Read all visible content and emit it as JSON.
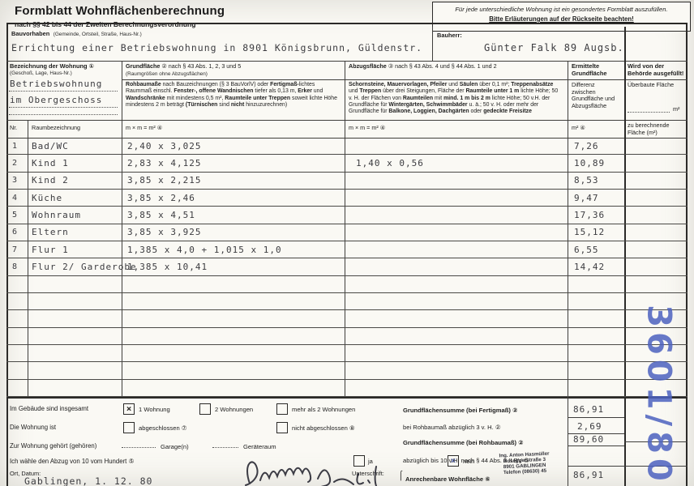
{
  "header": {
    "title": "Formblatt Wohnflächenberechnung",
    "subtitle": "nach §§ 42 bis 44 der Zweiten Berechnungsverordnung",
    "notice_line1": "Für jede unterschiedliche Wohnung ist ein gesondertes Formblatt auszufüllen.",
    "notice_line2": "Bitte Erläuterungen auf der Rückseite beachten!"
  },
  "bauvorhaben": {
    "label": "Bauvorhaben",
    "label_hint": "(Gemeinde, Ortsteil, Straße, Haus-Nr.)",
    "value": "Errichtung einer Betriebswohnung in 8901 Königsbrunn, Güldenstr."
  },
  "bauherr": {
    "label": "Bauherr:",
    "value": "Günter Falk 89 Augsb."
  },
  "wohnung_col": {
    "label": "Bezeichnung der Wohnung ①",
    "hint": "(Geschoß, Lage, Haus-Nr.)",
    "value_line1": "Betriebswohnung",
    "value_line2": "im Obergeschoss"
  },
  "grund_col": {
    "header_runs": [
      {
        "t": "Grundfläche",
        "b": 1
      },
      {
        "t": " ② nach § 43 Abs. 1, 2, 3 und 5",
        "b": 0
      }
    ],
    "hint": "(Raumgrößen ohne Abzugsflächen)",
    "desc_runs": [
      {
        "t": "Rohbaumaße",
        "b": 1
      },
      {
        "t": " nach Bauzeichnungen (§ 3 BauVorlV) oder ",
        "b": 0
      },
      {
        "t": "Fertigmaß-",
        "b": 1
      },
      {
        "t": "lichtes Raummaß einschl. ",
        "b": 0
      },
      {
        "t": "Fenster-, offene Wandnischen",
        "b": 1
      },
      {
        "t": " tiefer als 0,13 m, ",
        "b": 0
      },
      {
        "t": "Erker",
        "b": 1
      },
      {
        "t": " und ",
        "b": 0
      },
      {
        "t": "Wandschränke",
        "b": 1
      },
      {
        "t": " mit mindestens 0,5 m², ",
        "b": 0
      },
      {
        "t": "Raumteile unter Treppen",
        "b": 1
      },
      {
        "t": " soweit lichte Höhe mindestens 2 m beträgt ",
        "b": 0
      },
      {
        "t": "(Türnischen",
        "b": 1
      },
      {
        "t": " sind ",
        "b": 0
      },
      {
        "t": "nicht",
        "b": 1
      },
      {
        "t": " hinzuzurechnen)",
        "b": 0
      }
    ]
  },
  "abzug_col": {
    "header_runs": [
      {
        "t": "Abzugsfläche",
        "b": 1
      },
      {
        "t": " ③ nach § 43 Abs. 4 und § 44 Abs. 1 und 2",
        "b": 0
      }
    ],
    "desc_runs": [
      {
        "t": "Schornsteine, Mauervorlagen, Pfeiler",
        "b": 1
      },
      {
        "t": " und ",
        "b": 0
      },
      {
        "t": "Säulen",
        "b": 1
      },
      {
        "t": " über 0,1 m²; ",
        "b": 0
      },
      {
        "t": "Treppenabsätze",
        "b": 1
      },
      {
        "t": " und ",
        "b": 0
      },
      {
        "t": "Treppen",
        "b": 1
      },
      {
        "t": " über drei Steigungen, Fläche der ",
        "b": 0
      },
      {
        "t": "Raumteile unter 1 m",
        "b": 1
      },
      {
        "t": " lichte Höhe; 50 v. H. der Flächen von ",
        "b": 0
      },
      {
        "t": "Raumteilen",
        "b": 1
      },
      {
        "t": " mit ",
        "b": 0
      },
      {
        "t": "mind. 1 m bis 2 m",
        "b": 1
      },
      {
        "t": " lichte Höhe; 50 v.H. der Grundfläche für ",
        "b": 0
      },
      {
        "t": "Wintergärten, Schwimmbäder",
        "b": 1
      },
      {
        "t": " u. ä.; 50 v. H. oder mehr der Grundfläche für ",
        "b": 0
      },
      {
        "t": "Balkone, Loggien, Dachgärten",
        "b": 1
      },
      {
        "t": " oder ",
        "b": 0
      },
      {
        "t": "gedeckte Freisitze",
        "b": 1
      }
    ]
  },
  "ermittelte_col": {
    "label_line1": "Ermittelte",
    "label_line2": "Grundfläche",
    "desc": "Differenz zwischen Grundfläche und Abzugsfläche"
  },
  "behoerde_col": {
    "label": "Wird von der Behörde ausgefüllt!",
    "ueberbaut": "Überbaute Fläche",
    "m2": "m²",
    "zu_berechnende": "zu berechnende Fläche (m²)"
  },
  "table": {
    "sub_headers": {
      "nr": "Nr.",
      "raum": "Raumbezeichnung",
      "dims_grund": "m × m = m² ④",
      "dims_abzug": "m × m = m² ④",
      "m2": "m² ④"
    },
    "rows": [
      {
        "nr": "1",
        "raum": "Bad/WC",
        "grund": "2,40 x 3,025",
        "abzug": "",
        "flaeche": "7,26"
      },
      {
        "nr": "2",
        "raum": "Kind 1",
        "grund": "2,83 x 4,125",
        "abzug": "1,40 x 0,56",
        "flaeche": "10,89"
      },
      {
        "nr": "3",
        "raum": "Kind 2",
        "grund": "3,85 x 2,215",
        "abzug": "",
        "flaeche": "8,53"
      },
      {
        "nr": "4",
        "raum": "Küche",
        "grund": "3,85 x 2,46",
        "abzug": "",
        "flaeche": "9,47"
      },
      {
        "nr": "5",
        "raum": "Wohnraum",
        "grund": "3,85 x 4,51",
        "abzug": "",
        "flaeche": "17,36"
      },
      {
        "nr": "6",
        "raum": "Eltern",
        "grund": "3,85 x 3,925",
        "abzug": "",
        "flaeche": "15,12"
      },
      {
        "nr": "7",
        "raum": "Flur 1",
        "grund": "1,385 x 4,0  +  1,015 x 1,0",
        "abzug": "",
        "flaeche": "6,55"
      },
      {
        "nr": "8",
        "raum": "Flur 2/ Garderobe",
        "grund": "1,385 x 10,41",
        "abzug": "",
        "flaeche": "14,42"
      },
      {
        "nr": "",
        "raum": "",
        "grund": "",
        "abzug": "",
        "flaeche": ""
      },
      {
        "nr": "",
        "raum": "",
        "grund": "",
        "abzug": "",
        "flaeche": ""
      },
      {
        "nr": "",
        "raum": "",
        "grund": "",
        "abzug": "",
        "flaeche": ""
      },
      {
        "nr": "",
        "raum": "",
        "grund": "",
        "abzug": "",
        "flaeche": ""
      },
      {
        "nr": "",
        "raum": "",
        "grund": "",
        "abzug": "",
        "flaeche": ""
      },
      {
        "nr": "",
        "raum": "",
        "grund": "",
        "abzug": "",
        "flaeche": ""
      },
      {
        "nr": "",
        "raum": "",
        "grund": "",
        "abzug": "",
        "flaeche": ""
      }
    ]
  },
  "bottom": {
    "gebaeude_label": "Im Gebäude sind insgesamt",
    "opt_1wohnung": "1 Wohnung",
    "opt_2wohnungen": "2 Wohnungen",
    "opt_mehr": "mehr als 2 Wohnungen",
    "wohnungist_label": "Die Wohnung ist",
    "opt_abgeschlossen": "abgeschlossen ⑦",
    "opt_nicht_abgeschlossen": "nicht abgeschlossen ⑧",
    "gehoert_label": "Zur Wohnung gehört (gehören)",
    "garage_label": "Garage(n)",
    "geraeteraum_label": "Geräteraum",
    "abzug_label": "Ich wähle den Abzug von 10 vom Hundert ⑤",
    "ja_label": "ja",
    "nein_label": "nein",
    "ort_datum_label": "Ort, Datum:",
    "ort_datum_value": "Gablingen, 1. 12. 80",
    "unterschrift_label": "Unterschrift:"
  },
  "checks": {
    "eine_wohnung": true,
    "zwei_wohnungen": false,
    "mehr_wohnungen": false,
    "abgeschlossen": false,
    "nicht_abgeschlossen": false,
    "ja": false,
    "nein": true
  },
  "sums": {
    "fertigmass_label": "Grundflächensumme (bei Fertigmaß) ②",
    "fertigmass_value": "86,91",
    "rohbau_abzug_label": "bei Rohbaumaß abzüglich 3 v. H. ②",
    "rohbau_abzug_value": "2,69",
    "rohbau_label": "Grundflächensumme (bei Rohbaumaß) ②",
    "rohbau_value": "89,60",
    "abzug10_label": "abzüglich bis 10 v.H. nach § 44 Abs. 3 II.BV ⑤",
    "abzug10_value": "",
    "wohnflaeche_label": "Anrechenbare Wohnfläche ⑥",
    "wohnflaeche_value": "86,91"
  },
  "stamp": {
    "line1": "Ing. Anton Hasmüller",
    "line2": "Roseggerstraße 3",
    "line3": "8901 GABLINGEN",
    "line4": "Telefon (08630) 45"
  },
  "annotation": {
    "file_number": "3601/80",
    "ink_color": "#4d62c0"
  }
}
